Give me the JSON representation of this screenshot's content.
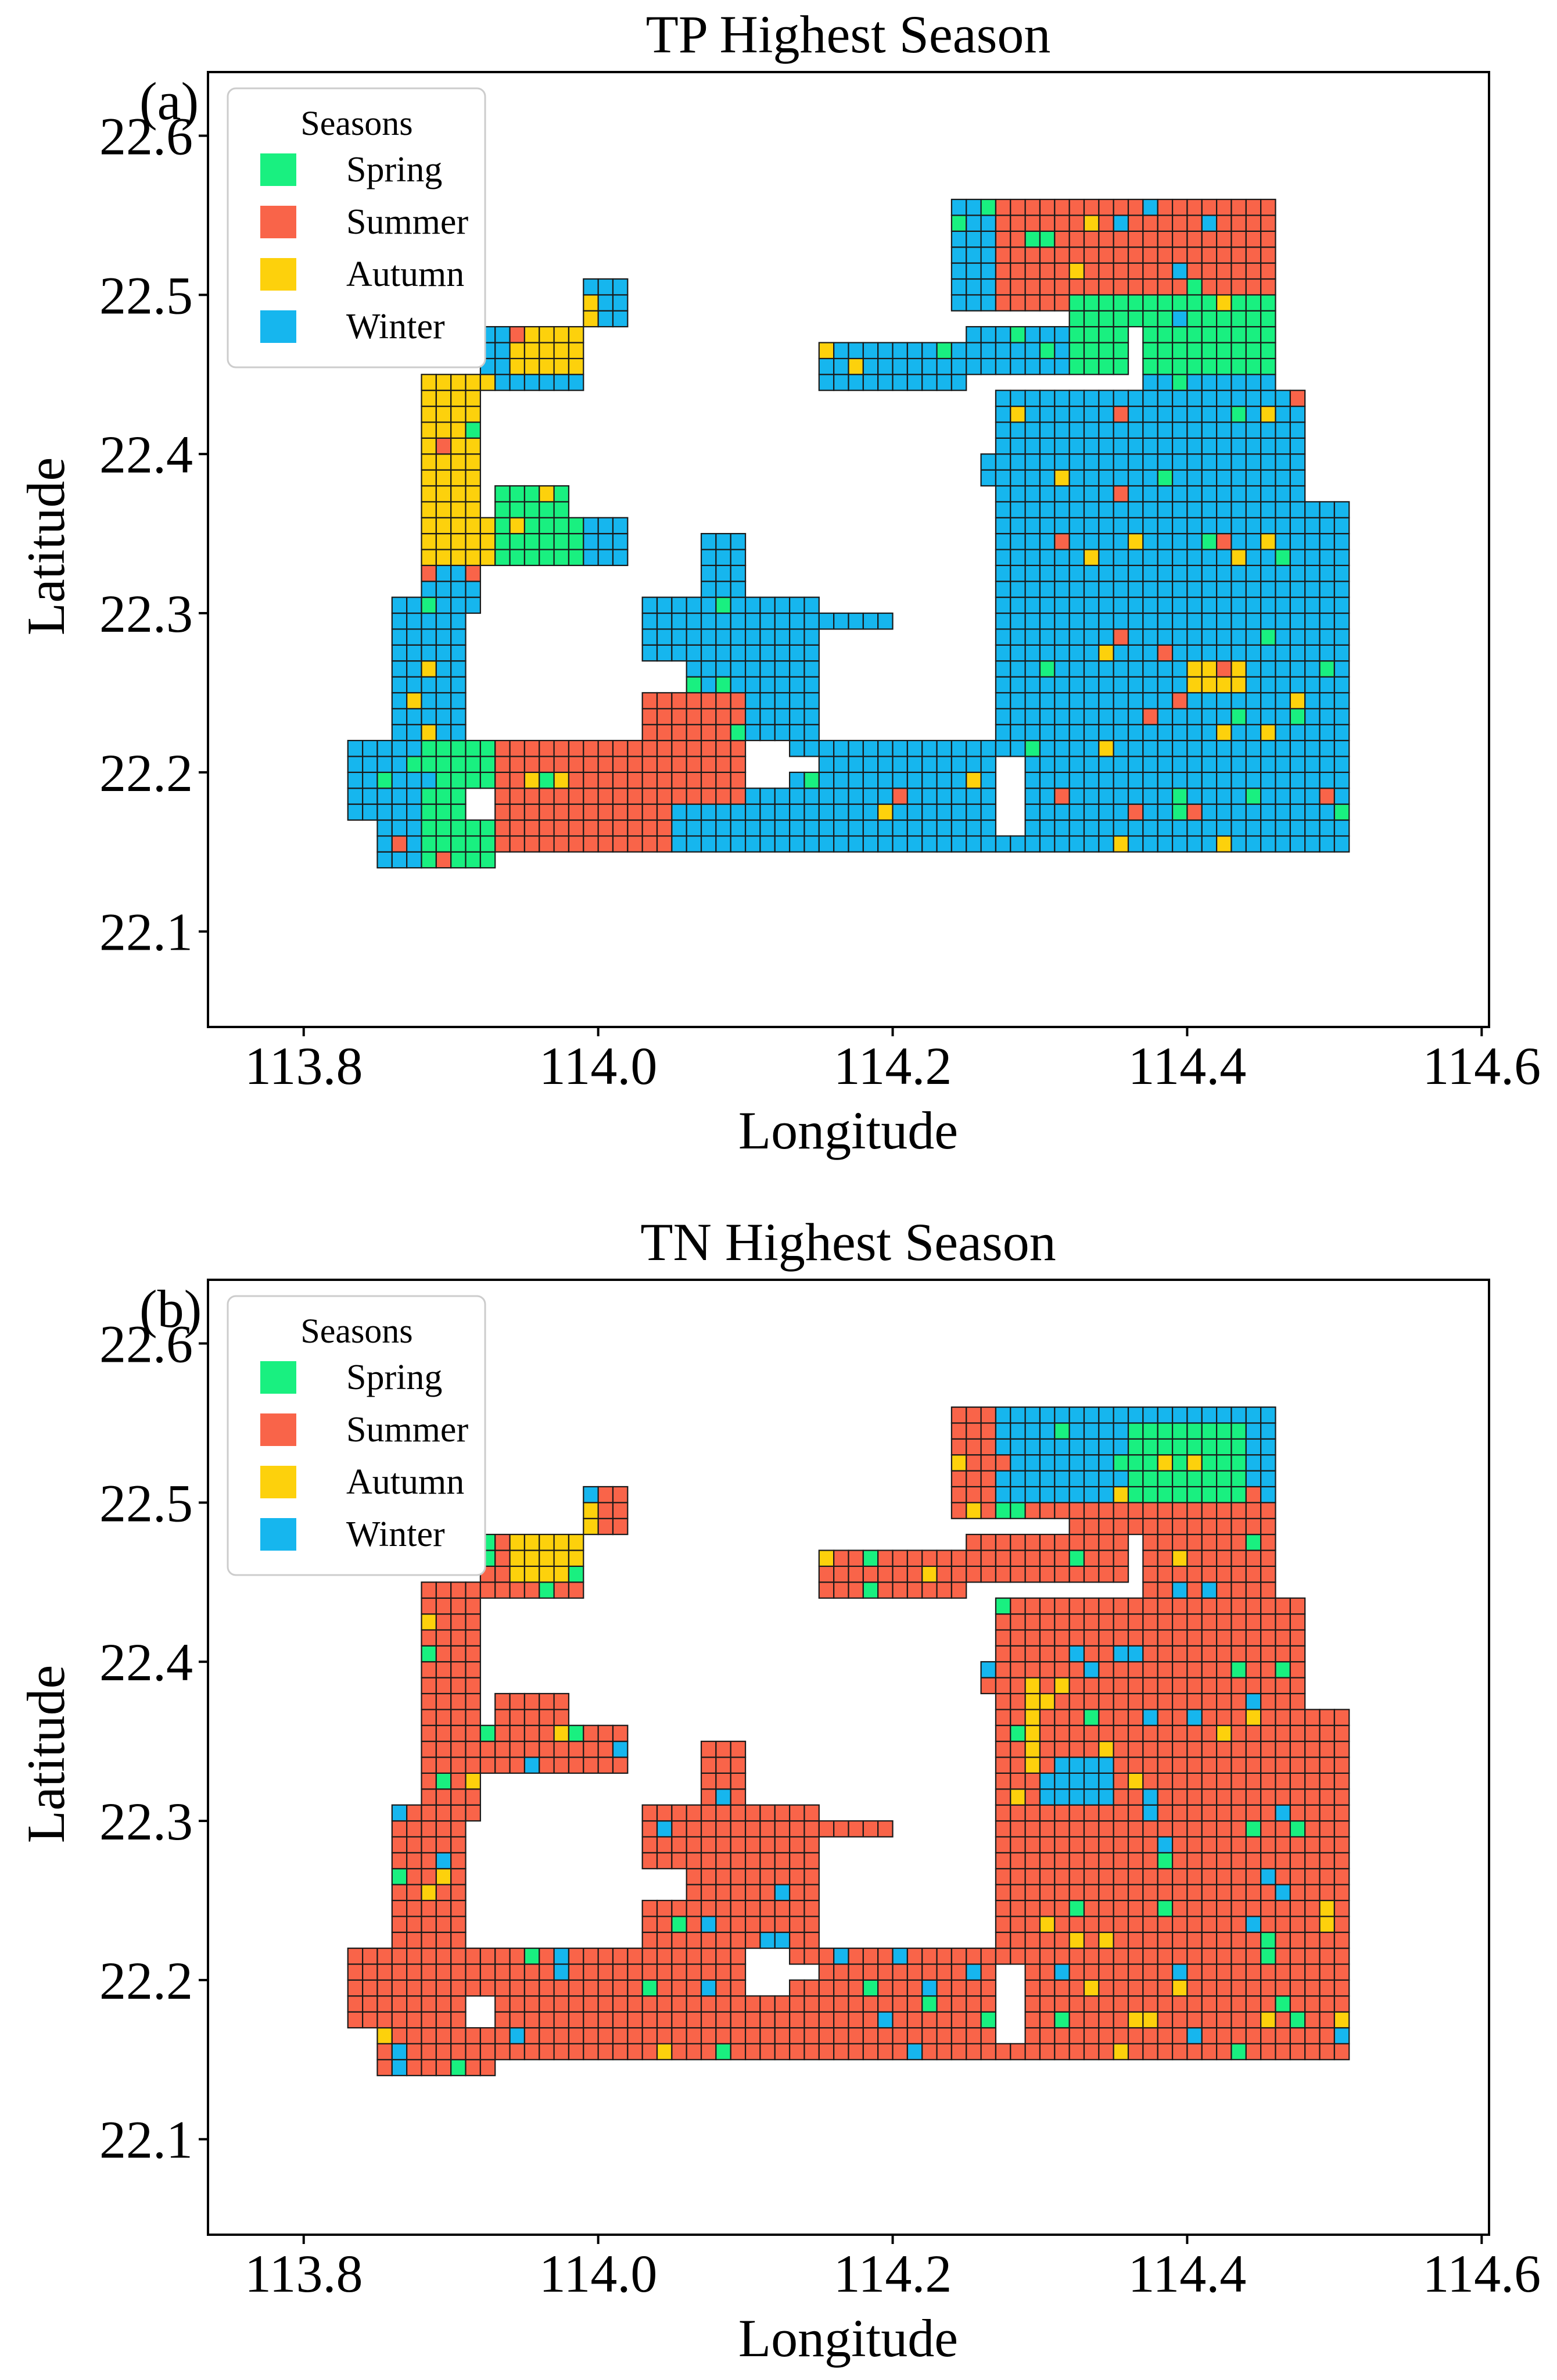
{
  "colors": {
    "Spring": "#19f080",
    "Summer": "#f96449",
    "Autumn": "#fdd10c",
    "Winter": "#16b6ee",
    "edge": "#1a1a1a",
    "frame": "#000000"
  },
  "chart_data": [
    {
      "type": "heatmap",
      "panel": "(a)",
      "title": "TP Highest Season",
      "xlabel": "Longitude",
      "ylabel": "Latitude",
      "xticks": [
        "113.8",
        "114.0",
        "114.2",
        "114.4",
        "114.6"
      ],
      "yticks": [
        "22.1",
        "22.2",
        "22.3",
        "22.4",
        "22.5",
        "22.6"
      ],
      "xlim": [
        113.735,
        114.605
      ],
      "ylim": [
        22.04,
        22.64
      ],
      "legend": {
        "title": "Seasons",
        "entries": [
          "Spring",
          "Summer",
          "Autumn",
          "Winter"
        ],
        "location": "upper left"
      },
      "grid": false,
      "cell_size_deg": 0.01,
      "land_mask_description": "Hong Kong marine grid cells (~0.01 deg) colored by season with highest TP",
      "regions": [
        {
          "season": "Winter",
          "lon": [
            113.83,
            113.9
          ],
          "lat": [
            22.17,
            22.3
          ]
        },
        {
          "season": "Spring",
          "lon": [
            113.88,
            113.93
          ],
          "lat": [
            22.14,
            22.21
          ]
        },
        {
          "season": "Summer",
          "lon": [
            113.92,
            114.05
          ],
          "lat": [
            22.15,
            22.22
          ]
        },
        {
          "season": "Winter",
          "lon": [
            114.05,
            114.27
          ],
          "lat": [
            22.15,
            22.3
          ]
        },
        {
          "season": "Summer",
          "lon": [
            114.0,
            114.1
          ],
          "lat": [
            22.18,
            22.25
          ]
        },
        {
          "season": "Winter",
          "lon": [
            114.27,
            114.51
          ],
          "lat": [
            22.15,
            22.45
          ]
        },
        {
          "season": "Summer",
          "lon": [
            114.26,
            114.46
          ],
          "lat": [
            22.49,
            22.56
          ]
        },
        {
          "season": "Spring",
          "lon": [
            114.31,
            114.46
          ],
          "lat": [
            22.44,
            22.5
          ]
        },
        {
          "season": "Spring",
          "lon": [
            113.9,
            113.98
          ],
          "lat": [
            22.32,
            22.37
          ]
        },
        {
          "season": "Autumn",
          "lon": [
            113.87,
            113.92
          ],
          "lat": [
            22.33,
            22.45
          ]
        },
        {
          "season": "Autumn",
          "lon": [
            113.93,
            114.0
          ],
          "lat": [
            22.44,
            22.5
          ]
        },
        {
          "season": "Autumn",
          "lon": [
            114.39,
            114.43
          ],
          "lat": [
            22.25,
            22.26
          ]
        }
      ]
    },
    {
      "type": "heatmap",
      "panel": "(b)",
      "title": "TN Highest Season",
      "xlabel": "Longitude",
      "ylabel": "Latitude",
      "xticks": [
        "113.8",
        "114.0",
        "114.2",
        "114.4",
        "114.6"
      ],
      "yticks": [
        "22.1",
        "22.2",
        "22.3",
        "22.4",
        "22.5",
        "22.6"
      ],
      "xlim": [
        113.735,
        114.605
      ],
      "ylim": [
        22.04,
        22.64
      ],
      "legend": {
        "title": "Seasons",
        "entries": [
          "Spring",
          "Summer",
          "Autumn",
          "Winter"
        ],
        "location": "upper left"
      },
      "grid": false,
      "cell_size_deg": 0.01,
      "land_mask_description": "Hong Kong marine grid cells (~0.01 deg) colored by season with highest TN",
      "regions": [
        {
          "season": "Summer",
          "lon": [
            113.83,
            114.51
          ],
          "lat": [
            22.14,
            22.49
          ]
        },
        {
          "season": "Winter",
          "lon": [
            114.26,
            114.46
          ],
          "lat": [
            22.5,
            22.56
          ]
        },
        {
          "season": "Spring",
          "lon": [
            114.36,
            114.43
          ],
          "lat": [
            22.5,
            22.55
          ]
        },
        {
          "season": "Autumn",
          "lon": [
            113.94,
            114.0
          ],
          "lat": [
            22.44,
            22.5
          ]
        },
        {
          "season": "Autumn",
          "lon": [
            114.28,
            114.3
          ],
          "lat": [
            22.33,
            22.39
          ]
        },
        {
          "season": "Winter",
          "lon": [
            114.29,
            114.35
          ],
          "lat": [
            22.31,
            22.34
          ]
        }
      ]
    }
  ]
}
